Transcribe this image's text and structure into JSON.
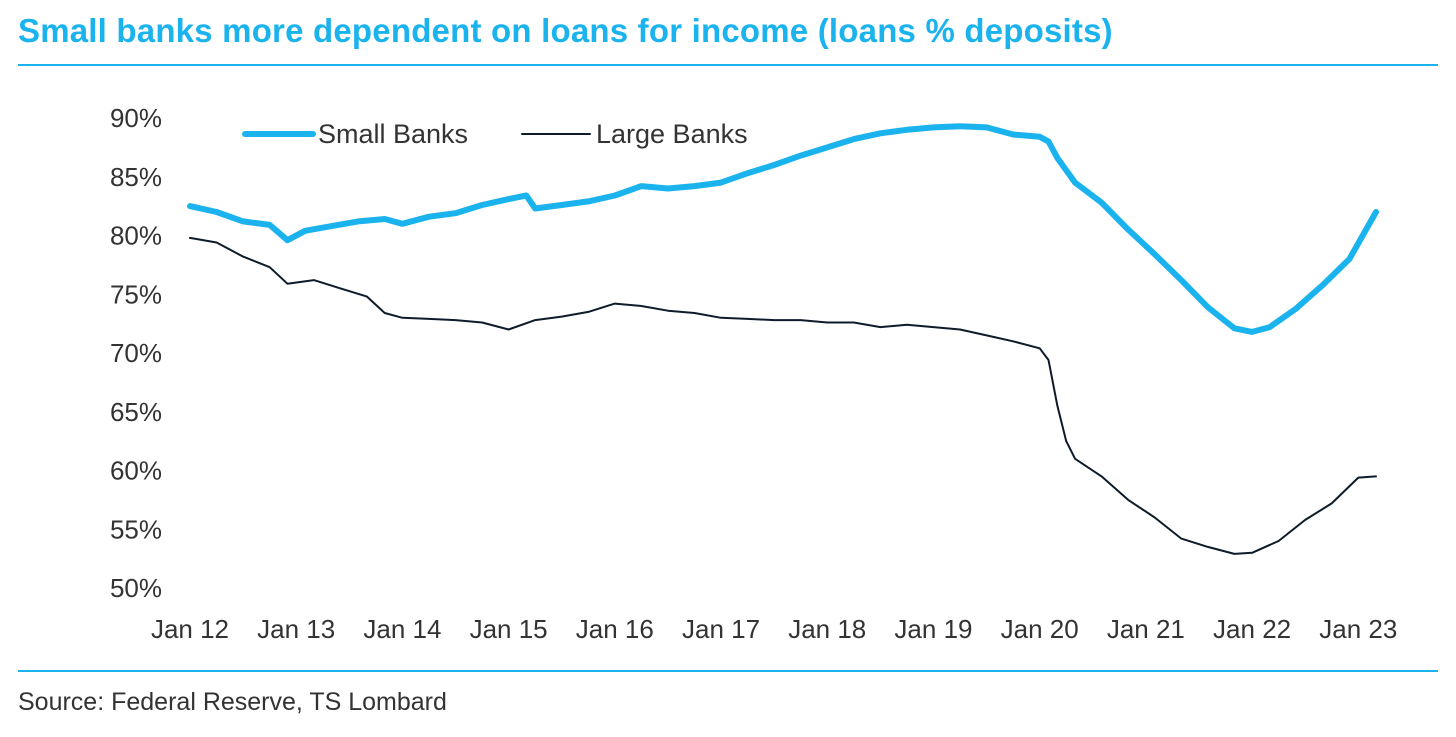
{
  "title": "Small banks more dependent on loans for income (loans % deposits)",
  "source": "Source: Federal Reserve, TS Lombard",
  "colors": {
    "small_banks": "#1bb3ee",
    "large_banks": "#0d1b2a",
    "accent": "#1bb3ee",
    "text": "#333333"
  },
  "chart_data": {
    "type": "line",
    "title": "Small banks more dependent on loans for income (loans % deposits)",
    "xlabel": "",
    "ylabel": "",
    "xlim": [
      "2012-01",
      "2023-03"
    ],
    "ylim": [
      50,
      90
    ],
    "y_ticks": [
      50,
      55,
      60,
      65,
      70,
      75,
      80,
      85,
      90
    ],
    "y_tick_labels": [
      "50%",
      "55%",
      "60%",
      "65%",
      "70%",
      "75%",
      "80%",
      "85%",
      "90%"
    ],
    "x_ticks": [
      "2012-01",
      "2013-01",
      "2014-01",
      "2015-01",
      "2016-01",
      "2017-01",
      "2018-01",
      "2019-01",
      "2020-01",
      "2021-01",
      "2022-01",
      "2023-01"
    ],
    "x_tick_labels": [
      "Jan 12",
      "Jan 13",
      "Jan 14",
      "Jan 15",
      "Jan 16",
      "Jan 17",
      "Jan 18",
      "Jan 19",
      "Jan 20",
      "Jan 21",
      "Jan 22",
      "Jan 23"
    ],
    "grid": false,
    "legend": "top-left",
    "series": [
      {
        "name": "Small Banks",
        "color": "#1bb3ee",
        "points": [
          [
            "2012-01",
            82.5
          ],
          [
            "2012-04",
            82.0
          ],
          [
            "2012-07",
            81.2
          ],
          [
            "2012-10",
            80.9
          ],
          [
            "2012-12",
            79.6
          ],
          [
            "2013-02",
            80.4
          ],
          [
            "2013-05",
            80.8
          ],
          [
            "2013-08",
            81.2
          ],
          [
            "2013-11",
            81.4
          ],
          [
            "2014-01",
            81.0
          ],
          [
            "2014-04",
            81.6
          ],
          [
            "2014-07",
            81.9
          ],
          [
            "2014-10",
            82.6
          ],
          [
            "2015-01",
            83.1
          ],
          [
            "2015-03",
            83.4
          ],
          [
            "2015-04",
            82.3
          ],
          [
            "2015-07",
            82.6
          ],
          [
            "2015-10",
            82.9
          ],
          [
            "2016-01",
            83.4
          ],
          [
            "2016-04",
            84.2
          ],
          [
            "2016-07",
            84.0
          ],
          [
            "2016-10",
            84.2
          ],
          [
            "2017-01",
            84.5
          ],
          [
            "2017-04",
            85.3
          ],
          [
            "2017-07",
            86.0
          ],
          [
            "2017-10",
            86.8
          ],
          [
            "2018-01",
            87.5
          ],
          [
            "2018-04",
            88.2
          ],
          [
            "2018-07",
            88.7
          ],
          [
            "2018-10",
            89.0
          ],
          [
            "2019-01",
            89.2
          ],
          [
            "2019-04",
            89.3
          ],
          [
            "2019-07",
            89.2
          ],
          [
            "2019-10",
            88.6
          ],
          [
            "2020-01",
            88.4
          ],
          [
            "2020-02",
            88.0
          ],
          [
            "2020-03",
            86.6
          ],
          [
            "2020-05",
            84.5
          ],
          [
            "2020-08",
            82.8
          ],
          [
            "2020-11",
            80.5
          ],
          [
            "2021-02",
            78.4
          ],
          [
            "2021-05",
            76.2
          ],
          [
            "2021-08",
            73.9
          ],
          [
            "2021-11",
            72.1
          ],
          [
            "2022-01",
            71.8
          ],
          [
            "2022-03",
            72.2
          ],
          [
            "2022-06",
            73.8
          ],
          [
            "2022-09",
            75.8
          ],
          [
            "2022-12",
            78.0
          ],
          [
            "2023-03",
            82.0
          ]
        ]
      },
      {
        "name": "Large Banks",
        "color": "#0d1b2a",
        "points": [
          [
            "2012-01",
            79.8
          ],
          [
            "2012-04",
            79.4
          ],
          [
            "2012-07",
            78.2
          ],
          [
            "2012-10",
            77.3
          ],
          [
            "2012-12",
            75.9
          ],
          [
            "2013-03",
            76.2
          ],
          [
            "2013-06",
            75.5
          ],
          [
            "2013-09",
            74.8
          ],
          [
            "2013-11",
            73.4
          ],
          [
            "2014-01",
            73.0
          ],
          [
            "2014-04",
            72.9
          ],
          [
            "2014-07",
            72.8
          ],
          [
            "2014-10",
            72.6
          ],
          [
            "2015-01",
            72.0
          ],
          [
            "2015-04",
            72.8
          ],
          [
            "2015-07",
            73.1
          ],
          [
            "2015-10",
            73.5
          ],
          [
            "2016-01",
            74.2
          ],
          [
            "2016-04",
            74.0
          ],
          [
            "2016-07",
            73.6
          ],
          [
            "2016-10",
            73.4
          ],
          [
            "2017-01",
            73.0
          ],
          [
            "2017-04",
            72.9
          ],
          [
            "2017-07",
            72.8
          ],
          [
            "2017-10",
            72.8
          ],
          [
            "2018-01",
            72.6
          ],
          [
            "2018-04",
            72.6
          ],
          [
            "2018-07",
            72.2
          ],
          [
            "2018-10",
            72.4
          ],
          [
            "2019-01",
            72.2
          ],
          [
            "2019-04",
            72.0
          ],
          [
            "2019-07",
            71.5
          ],
          [
            "2019-10",
            71.0
          ],
          [
            "2020-01",
            70.4
          ],
          [
            "2020-02",
            69.4
          ],
          [
            "2020-03",
            65.5
          ],
          [
            "2020-04",
            62.5
          ],
          [
            "2020-05",
            61.0
          ],
          [
            "2020-08",
            59.5
          ],
          [
            "2020-11",
            57.5
          ],
          [
            "2021-02",
            56.0
          ],
          [
            "2021-05",
            54.2
          ],
          [
            "2021-08",
            53.5
          ],
          [
            "2021-11",
            52.9
          ],
          [
            "2022-01",
            53.0
          ],
          [
            "2022-04",
            54.0
          ],
          [
            "2022-07",
            55.8
          ],
          [
            "2022-10",
            57.2
          ],
          [
            "2023-01",
            59.4
          ],
          [
            "2023-03",
            59.5
          ]
        ]
      }
    ]
  }
}
